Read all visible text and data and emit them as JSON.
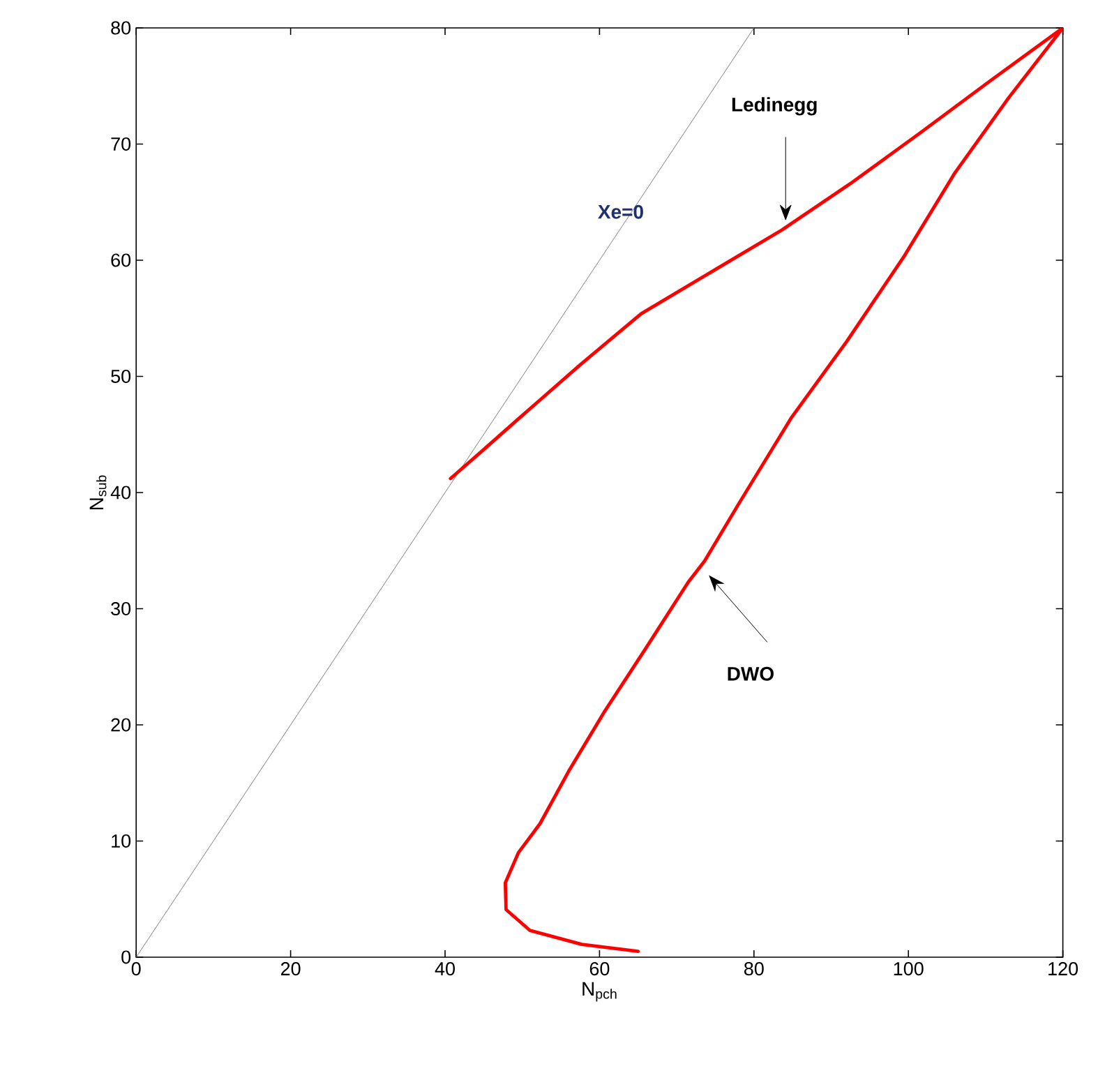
{
  "chart_data": {
    "type": "line",
    "xlabel": "N$_{pch}$",
    "ylabel": "N$_{sub}$",
    "xlim": [
      0,
      120
    ],
    "ylim": [
      0,
      80
    ],
    "xticks": [
      0,
      20,
      40,
      60,
      80,
      100,
      120
    ],
    "yticks": [
      0,
      10,
      20,
      30,
      40,
      50,
      60,
      70,
      80
    ],
    "grid": false,
    "legend": false,
    "marker": "none",
    "line_style": "solid",
    "series": [
      {
        "name": "Xe=0",
        "color": "#808080",
        "x": [
          0,
          80
        ],
        "values": [
          0,
          80
        ]
      },
      {
        "color": "#ff0000",
        "x": [
          65,
          57.7,
          51,
          47.9,
          47.8,
          49.5,
          52.3,
          56,
          60.6,
          66,
          71.5,
          73.6,
          78,
          84.8,
          92,
          99.5,
          106,
          113,
          120,
          110.5,
          101.6,
          92.5,
          83.6,
          74.5,
          65.4,
          57.5,
          49.6,
          45,
          40.7
        ],
        "values": [
          0.5,
          1.1,
          2.3,
          4.1,
          6.4,
          9,
          11.5,
          16,
          21.1,
          26.6,
          32.3,
          34.1,
          39,
          46.4,
          53,
          60.4,
          67.5,
          74,
          80,
          75.4,
          71,
          66.6,
          62.6,
          59,
          55.4,
          51,
          46.4,
          43.7,
          41.2
        ]
      }
    ],
    "annotations": [
      {
        "text": "Ledinegg",
        "x": 84.1,
        "y": 63.4
      },
      "DWO"
    ]
  }
}
